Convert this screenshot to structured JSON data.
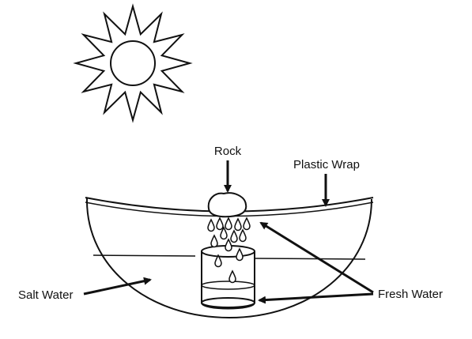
{
  "labels": {
    "rock": "Rock",
    "plastic_wrap": "Plastic Wrap",
    "salt_water": "Salt Water",
    "fresh_water": "Fresh Water"
  },
  "colors": {
    "stroke": "#111111",
    "background": "#ffffff"
  },
  "icons": [
    "sun-icon",
    "rock-icon",
    "water-droplet-icon"
  ]
}
